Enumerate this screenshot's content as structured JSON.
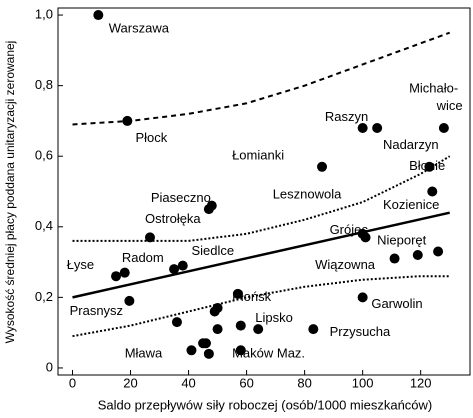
{
  "chart_data": {
    "type": "scatter",
    "xlabel": "Saldo przepływów siły roboczej (osób/1000 mieszkańców)",
    "ylabel": "Wysokość średniej płacy poddana unitaryzacji zerowanej",
    "xlim": [
      -5,
      137
    ],
    "ylim": [
      -0.02,
      1.02
    ],
    "xticks": [
      0,
      20,
      40,
      60,
      80,
      100,
      120
    ],
    "yticks": [
      0,
      {
        "value": 0.2,
        "label": "0,2"
      },
      {
        "value": 0.4,
        "label": "0,4"
      },
      {
        "value": 0.6,
        "label": "0,6"
      },
      {
        "value": 0.8,
        "label": "0,8"
      },
      {
        "value": 1,
        "label": "1,0"
      }
    ],
    "color": "#000000",
    "x": [
      8.9,
      18.9,
      15,
      18,
      26.7,
      19.6,
      35,
      38,
      36,
      47,
      48,
      41,
      45,
      47,
      46,
      50,
      49,
      50,
      58,
      57,
      64,
      58,
      86,
      83,
      100,
      105,
      100,
      101,
      100,
      111,
      119,
      126,
      123,
      124,
      128
    ],
    "y": [
      1.0,
      0.7,
      0.26,
      0.27,
      0.37,
      0.19,
      0.28,
      0.29,
      0.13,
      0.45,
      0.46,
      0.05,
      0.07,
      0.04,
      0.07,
      0.17,
      0.16,
      0.11,
      0.05,
      0.21,
      0.11,
      0.12,
      0.57,
      0.11,
      0.68,
      0.68,
      0.2,
      0.37,
      0.38,
      0.31,
      0.32,
      0.33,
      0.57,
      0.5,
      0.68
    ],
    "lines": [
      {
        "style": "solid",
        "x": [
          0,
          130
        ],
        "y": [
          0.2,
          0.44
        ]
      },
      {
        "style": "dashed",
        "x": [
          0,
          20,
          40,
          60,
          80,
          100,
          120,
          130
        ],
        "y": [
          0.69,
          0.7,
          0.72,
          0.75,
          0.8,
          0.86,
          0.92,
          0.95
        ]
      },
      {
        "style": "dotted",
        "x": [
          0,
          40,
          60,
          80,
          100,
          120,
          130
        ],
        "y": [
          0.36,
          0.36,
          0.38,
          0.42,
          0.47,
          0.55,
          0.6
        ]
      },
      {
        "style": "dotted",
        "x": [
          0,
          20,
          40,
          60,
          80,
          100,
          120,
          130
        ],
        "y": [
          0.09,
          0.12,
          0.16,
          0.2,
          0.23,
          0.25,
          0.26,
          0.26
        ]
      }
    ],
    "annotations": [
      {
        "text": "Warszawa",
        "x": 12.5,
        "y": 0.96
      },
      {
        "text": "Płock",
        "x": 21.7,
        "y": 0.65
      },
      {
        "text": "Łomianki",
        "x": 55,
        "y": 0.6
      },
      {
        "text": "Raszyn",
        "x": 87,
        "y": 0.71
      },
      {
        "text": "Michało-",
        "x": 116,
        "y": 0.79
      },
      {
        "text": "wice",
        "x": 125.5,
        "y": 0.74
      },
      {
        "text": "Nadarzyn",
        "x": 107,
        "y": 0.63
      },
      {
        "text": "Błonie",
        "x": 116,
        "y": 0.57
      },
      {
        "text": "Piaseczno",
        "x": 27,
        "y": 0.48
      },
      {
        "text": "Lesznowola",
        "x": 69,
        "y": 0.49
      },
      {
        "text": "Kozienice",
        "x": 107,
        "y": 0.46
      },
      {
        "text": "Ostrołęka",
        "x": 25,
        "y": 0.42
      },
      {
        "text": "Grójec",
        "x": 88.6,
        "y": 0.39
      },
      {
        "text": "Nieporęt",
        "x": 105,
        "y": 0.36
      },
      {
        "text": "Siedlce",
        "x": 41,
        "y": 0.33
      },
      {
        "text": "Radom",
        "x": 17,
        "y": 0.31
      },
      {
        "text": "Łyse",
        "x": -2,
        "y": 0.29
      },
      {
        "text": "Wiązowna",
        "x": 83.6,
        "y": 0.29
      },
      {
        "text": "Garwolin",
        "x": 103,
        "y": 0.18
      },
      {
        "text": "Prasnysz",
        "x": -1,
        "y": 0.16
      },
      {
        "text": "Płońsk",
        "x": 55,
        "y": 0.2
      },
      {
        "text": "Lipsko",
        "x": 63,
        "y": 0.14
      },
      {
        "text": "Przysucha",
        "x": 88.6,
        "y": 0.1
      },
      {
        "text": "Mława",
        "x": 18,
        "y": 0.04
      },
      {
        "text": "Maków Maz.",
        "x": 55,
        "y": 0.04
      }
    ]
  }
}
